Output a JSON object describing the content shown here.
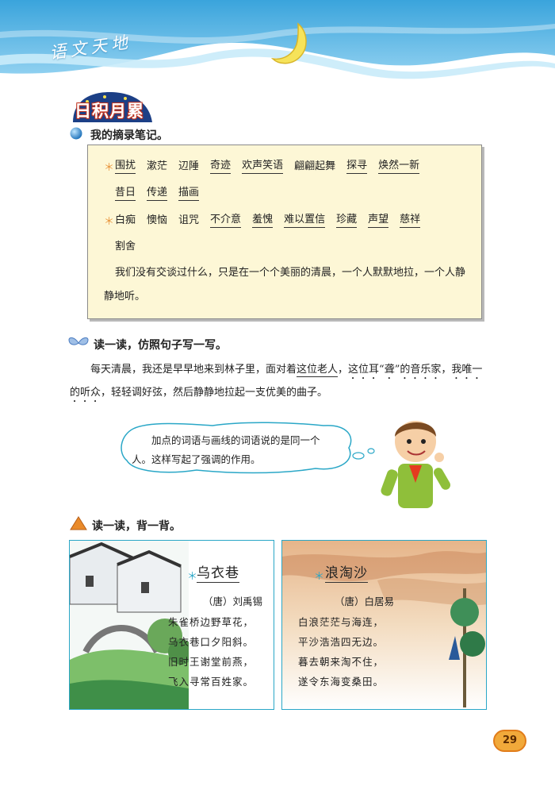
{
  "header": {
    "title": "语文天地"
  },
  "section_badge": "日积月累",
  "notes": {
    "heading": "我的摘录笔记。",
    "row1": [
      "围扰",
      "漱茫",
      "辺陲",
      "奇迹",
      "欢声笑语",
      "翩翩起舞",
      "探寻",
      "焕然一新"
    ],
    "row2": [
      "昔日",
      "传递",
      "描画"
    ],
    "row3": [
      "白痴",
      "懊恼",
      "诅咒",
      "不介意",
      "羞愧",
      "难以置信",
      "珍藏",
      "声望",
      "慈祥"
    ],
    "row4": [
      "割舍"
    ],
    "sentence": "我们没有交谈过什么，只是在一个个美丽的清晨，一个人默默地拉，一个人静静地听。"
  },
  "imitate": {
    "heading": "读一读，仿照句子写一写。",
    "para_a": "每天清晨，我还是早早地来到林子里，面对着",
    "para_underline": "这位老人",
    "para_b": "，",
    "para_dots1": "这位耳“聋”的音乐家，我唯一的听众",
    "para_c": "，轻轻调好弦，然后静静地拉起一支优美的曲子。",
    "bubble": "加点的词语与画线的词语说的是同一个人。这样写起了强调的作用。"
  },
  "recite": {
    "heading": "读一读，背一背。",
    "poem1": {
      "title": "乌衣巷",
      "author": "（唐）刘禹锡",
      "lines": [
        "朱雀桥边野草花，",
        "乌衣巷口夕阳斜。",
        "旧时王谢堂前燕，",
        "飞入寻常百姓家。"
      ]
    },
    "poem2": {
      "title": "浪淘沙",
      "author": "（唐）白居易",
      "lines": [
        "白浪茫茫与海连，",
        "平沙浩浩四无边。",
        "暮去朝来淘不住，",
        "遂令东海变桑田。"
      ]
    }
  },
  "page_number": "29",
  "colors": {
    "sky": "#5fb8e6",
    "accent_orange": "#e8943a",
    "card_border": "#2aa7c7",
    "notes_bg": "#fdf7d6"
  },
  "icons": [
    "moon-icon",
    "blue-ball-icon",
    "butterfly-icon",
    "triangle-icon",
    "boy-illustration",
    "village-illustration",
    "sea-illustration"
  ]
}
